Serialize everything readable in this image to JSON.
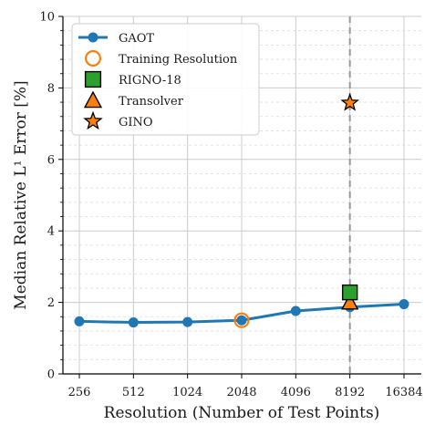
{
  "chart_data": {
    "type": "line",
    "xlabel": "Resolution (Number of Test Points)",
    "ylabel": "Median Relative L¹ Error [%]",
    "categories": [
      "256",
      "512",
      "1024",
      "2048",
      "4096",
      "8192",
      "16384"
    ],
    "ylim": [
      0,
      10
    ],
    "yticks": [
      "0",
      "2",
      "4",
      "6",
      "8",
      "10"
    ],
    "grid": true,
    "legend_position": "top-left",
    "reference_line": {
      "category": "8192",
      "style": "dashed",
      "color": "#999999"
    },
    "series": [
      {
        "name": "GAOT",
        "marker": "circle",
        "color": "#1f77b4",
        "points": [
          {
            "x": "256",
            "y": 1.47
          },
          {
            "x": "512",
            "y": 1.44
          },
          {
            "x": "1024",
            "y": 1.45
          },
          {
            "x": "2048",
            "y": 1.5
          },
          {
            "x": "4096",
            "y": 1.76
          },
          {
            "x": "8192",
            "y": 1.87
          },
          {
            "x": "16384",
            "y": 1.95
          }
        ]
      },
      {
        "name": "Training Resolution",
        "marker": "open-circle",
        "color": "#ff7f0e",
        "points": [
          {
            "x": "2048",
            "y": 1.5
          }
        ]
      },
      {
        "name": "RIGNO-18",
        "marker": "square",
        "color": "#2ca02c",
        "points": [
          {
            "x": "8192",
            "y": 2.28
          }
        ]
      },
      {
        "name": "Transolver",
        "marker": "triangle",
        "color": "#ff7f0e",
        "points": [
          {
            "x": "8192",
            "y": 2.0
          }
        ]
      },
      {
        "name": "GINO",
        "marker": "star",
        "color": "#ff7f0e",
        "points": [
          {
            "x": "8192",
            "y": 7.58
          }
        ]
      }
    ]
  }
}
